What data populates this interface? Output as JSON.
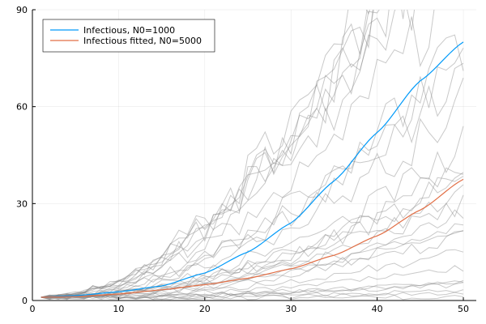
{
  "chart_data": {
    "type": "line",
    "title": "",
    "xlabel": "",
    "ylabel": "",
    "xlim": [
      0,
      51.5
    ],
    "ylim": [
      0,
      90
    ],
    "x_ticks": [
      0,
      10,
      20,
      30,
      40,
      50
    ],
    "y_ticks": [
      0,
      30,
      60,
      90
    ],
    "x_tick_labels": [
      "0",
      "10",
      "20",
      "30",
      "40",
      "50"
    ],
    "y_tick_labels": [
      "0",
      "30",
      "60",
      "90"
    ],
    "grid": true,
    "legend_position": "top-left",
    "legend": [
      {
        "name": "Infectious, N0=1000",
        "color": "#009af9"
      },
      {
        "name": "Infectious fitted, N0=5000",
        "color": "#e26f46"
      }
    ],
    "series": [
      {
        "name": "Infectious, N0=1000",
        "color": "#009af9",
        "x": [
          1,
          5,
          10,
          15,
          20,
          25,
          30,
          35,
          40,
          45,
          50
        ],
        "y": [
          1,
          1.5,
          2.7,
          4.5,
          8.5,
          15,
          24,
          37,
          52,
          68,
          80
        ]
      },
      {
        "name": "Infectious fitted, N0=5000",
        "color": "#e26f46",
        "x": [
          1,
          5,
          10,
          15,
          20,
          25,
          30,
          35,
          40,
          45,
          50
        ],
        "y": [
          1,
          1.2,
          2,
          3.3,
          4.9,
          6.9,
          9.8,
          14,
          20,
          28,
          37.5
        ]
      }
    ],
    "background_trajectories": {
      "color": "#888888",
      "count": 30,
      "x_range": [
        1,
        50
      ],
      "final_values": [
        90,
        90,
        90,
        90,
        90,
        90,
        90,
        90,
        80,
        76,
        72,
        62,
        48,
        42,
        40,
        38,
        34,
        30,
        27,
        24,
        22,
        20,
        15,
        10,
        6,
        6,
        5,
        3,
        2,
        1
      ]
    }
  }
}
